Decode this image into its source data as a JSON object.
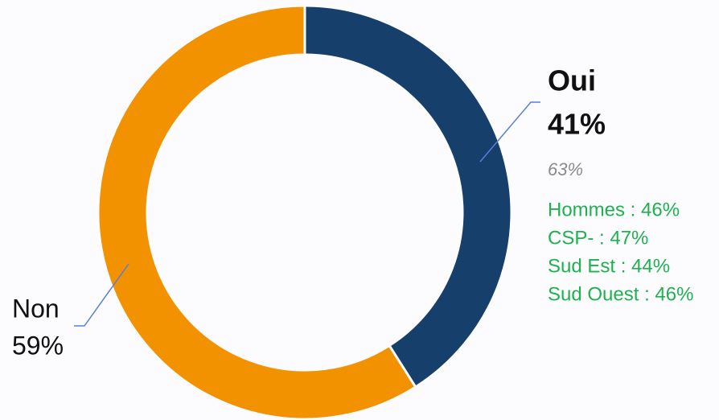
{
  "chart_data": {
    "type": "pie",
    "donut": true,
    "categories": [
      "Oui",
      "Non"
    ],
    "values": [
      41,
      59
    ],
    "value_labels": [
      "41%",
      "59%"
    ],
    "colors": [
      "#173f6b",
      "#f39200"
    ],
    "annotations": [
      "63%",
      "Hommes : 46%",
      "CSP- : 47%",
      "Sud Est : 44%",
      "Sud Ouest : 46%"
    ]
  }
}
